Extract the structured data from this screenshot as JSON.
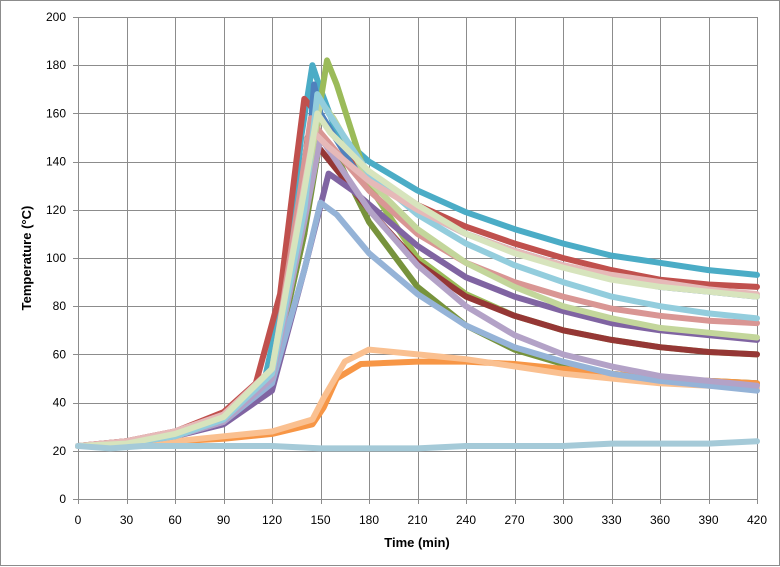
{
  "chart_data": {
    "type": "line",
    "xlabel": "Time (min)",
    "ylabel": "Temperature (°C)",
    "xlim": [
      0,
      420
    ],
    "ylim": [
      0,
      200
    ],
    "x_ticks": [
      0,
      30,
      60,
      90,
      120,
      150,
      180,
      210,
      240,
      270,
      300,
      330,
      360,
      390,
      420
    ],
    "y_ticks": [
      0,
      20,
      40,
      60,
      80,
      100,
      120,
      140,
      160,
      180,
      200
    ],
    "grid": true,
    "legend": "none",
    "series": [
      {
        "color": "#4BACC6",
        "points": [
          [
            0,
            22
          ],
          [
            30,
            23
          ],
          [
            60,
            26
          ],
          [
            90,
            32
          ],
          [
            115,
            48
          ],
          [
            130,
            95
          ],
          [
            138,
            150
          ],
          [
            145,
            180
          ],
          [
            150,
            170
          ],
          [
            160,
            152
          ],
          [
            180,
            140
          ],
          [
            210,
            128
          ],
          [
            240,
            119
          ],
          [
            270,
            112
          ],
          [
            300,
            106
          ],
          [
            330,
            101
          ],
          [
            360,
            98
          ],
          [
            390,
            95
          ],
          [
            420,
            93
          ]
        ]
      },
      {
        "color": "#9BBB59",
        "points": [
          [
            0,
            22
          ],
          [
            30,
            23
          ],
          [
            60,
            26
          ],
          [
            90,
            33
          ],
          [
            120,
            50
          ],
          [
            140,
            110
          ],
          [
            150,
            165
          ],
          [
            154,
            182
          ],
          [
            160,
            172
          ],
          [
            180,
            130
          ],
          [
            210,
            100
          ],
          [
            240,
            85
          ],
          [
            270,
            76
          ],
          [
            300,
            70
          ],
          [
            330,
            66
          ],
          [
            360,
            63
          ],
          [
            390,
            61
          ],
          [
            420,
            60
          ]
        ]
      },
      {
        "color": "#C0504D",
        "points": [
          [
            0,
            22
          ],
          [
            30,
            24
          ],
          [
            60,
            28
          ],
          [
            90,
            36
          ],
          [
            110,
            48
          ],
          [
            125,
            85
          ],
          [
            135,
            140
          ],
          [
            140,
            166
          ],
          [
            148,
            160
          ],
          [
            170,
            140
          ],
          [
            210,
            122
          ],
          [
            240,
            113
          ],
          [
            270,
            106
          ],
          [
            300,
            100
          ],
          [
            330,
            95
          ],
          [
            360,
            91
          ],
          [
            390,
            89
          ],
          [
            420,
            88
          ]
        ]
      },
      {
        "color": "#4F81BD",
        "points": [
          [
            0,
            22
          ],
          [
            30,
            23
          ],
          [
            60,
            27
          ],
          [
            90,
            33
          ],
          [
            120,
            52
          ],
          [
            140,
            120
          ],
          [
            146,
            172
          ],
          [
            150,
            160
          ],
          [
            170,
            138
          ],
          [
            210,
            120
          ],
          [
            240,
            110
          ],
          [
            270,
            103
          ],
          [
            300,
            97
          ],
          [
            330,
            92
          ],
          [
            360,
            88
          ],
          [
            390,
            86
          ],
          [
            420,
            84
          ]
        ]
      },
      {
        "color": "#77933C",
        "points": [
          [
            0,
            22
          ],
          [
            30,
            23
          ],
          [
            60,
            26
          ],
          [
            90,
            32
          ],
          [
            120,
            50
          ],
          [
            140,
            110
          ],
          [
            150,
            150
          ],
          [
            160,
            142
          ],
          [
            180,
            115
          ],
          [
            210,
            88
          ],
          [
            240,
            72
          ],
          [
            270,
            62
          ],
          [
            300,
            56
          ],
          [
            330,
            52
          ],
          [
            360,
            50
          ],
          [
            390,
            49
          ],
          [
            420,
            48
          ]
        ]
      },
      {
        "color": "#953735",
        "points": [
          [
            0,
            22
          ],
          [
            30,
            24
          ],
          [
            60,
            27
          ],
          [
            90,
            34
          ],
          [
            120,
            52
          ],
          [
            135,
            105
          ],
          [
            142,
            150
          ],
          [
            150,
            145
          ],
          [
            180,
            120
          ],
          [
            210,
            98
          ],
          [
            240,
            84
          ],
          [
            270,
            76
          ],
          [
            300,
            70
          ],
          [
            330,
            66
          ],
          [
            360,
            63
          ],
          [
            390,
            61
          ],
          [
            420,
            60
          ]
        ]
      },
      {
        "color": "#8064A2",
        "points": [
          [
            0,
            22
          ],
          [
            30,
            23
          ],
          [
            60,
            26
          ],
          [
            90,
            31
          ],
          [
            120,
            45
          ],
          [
            140,
            95
          ],
          [
            155,
            135
          ],
          [
            170,
            128
          ],
          [
            210,
            105
          ],
          [
            240,
            92
          ],
          [
            270,
            84
          ],
          [
            300,
            78
          ],
          [
            330,
            73
          ],
          [
            360,
            70
          ],
          [
            390,
            68
          ],
          [
            420,
            66
          ]
        ]
      },
      {
        "color": "#F79646",
        "points": [
          [
            0,
            22
          ],
          [
            30,
            23
          ],
          [
            60,
            24
          ],
          [
            90,
            25
          ],
          [
            120,
            27
          ],
          [
            145,
            31
          ],
          [
            152,
            38
          ],
          [
            160,
            50
          ],
          [
            175,
            56
          ],
          [
            210,
            57
          ],
          [
            240,
            57
          ],
          [
            270,
            56
          ],
          [
            300,
            54
          ],
          [
            330,
            52
          ],
          [
            360,
            50
          ],
          [
            390,
            49
          ],
          [
            420,
            48
          ]
        ]
      },
      {
        "color": "#FAC090",
        "points": [
          [
            0,
            22
          ],
          [
            30,
            23
          ],
          [
            60,
            24
          ],
          [
            90,
            26
          ],
          [
            120,
            28
          ],
          [
            145,
            33
          ],
          [
            152,
            42
          ],
          [
            165,
            57
          ],
          [
            180,
            62
          ],
          [
            210,
            60
          ],
          [
            240,
            58
          ],
          [
            270,
            55
          ],
          [
            300,
            52
          ],
          [
            330,
            50
          ],
          [
            360,
            48
          ],
          [
            390,
            47
          ],
          [
            420,
            46
          ]
        ]
      },
      {
        "color": "#95B3D7",
        "points": [
          [
            0,
            22
          ],
          [
            30,
            23
          ],
          [
            60,
            26
          ],
          [
            90,
            32
          ],
          [
            120,
            48
          ],
          [
            140,
            95
          ],
          [
            150,
            123
          ],
          [
            160,
            118
          ],
          [
            180,
            102
          ],
          [
            210,
            85
          ],
          [
            240,
            72
          ],
          [
            270,
            63
          ],
          [
            300,
            57
          ],
          [
            330,
            52
          ],
          [
            360,
            49
          ],
          [
            390,
            47
          ],
          [
            420,
            45
          ]
        ]
      },
      {
        "color": "#B3A2C7",
        "points": [
          [
            0,
            22
          ],
          [
            30,
            23
          ],
          [
            60,
            26
          ],
          [
            90,
            32
          ],
          [
            120,
            50
          ],
          [
            140,
            115
          ],
          [
            150,
            150
          ],
          [
            160,
            140
          ],
          [
            180,
            120
          ],
          [
            210,
            97
          ],
          [
            240,
            80
          ],
          [
            270,
            68
          ],
          [
            300,
            60
          ],
          [
            330,
            55
          ],
          [
            360,
            51
          ],
          [
            390,
            49
          ],
          [
            420,
            47
          ]
        ]
      },
      {
        "color": "#D99694",
        "points": [
          [
            0,
            22
          ],
          [
            30,
            24
          ],
          [
            60,
            28
          ],
          [
            90,
            35
          ],
          [
            120,
            52
          ],
          [
            138,
            130
          ],
          [
            144,
            158
          ],
          [
            150,
            152
          ],
          [
            180,
            128
          ],
          [
            210,
            110
          ],
          [
            240,
            98
          ],
          [
            270,
            90
          ],
          [
            300,
            84
          ],
          [
            330,
            79
          ],
          [
            360,
            76
          ],
          [
            390,
            74
          ],
          [
            420,
            73
          ]
        ]
      },
      {
        "color": "#C3D69B",
        "points": [
          [
            0,
            22
          ],
          [
            30,
            23
          ],
          [
            60,
            27
          ],
          [
            90,
            34
          ],
          [
            120,
            53
          ],
          [
            140,
            125
          ],
          [
            150,
            165
          ],
          [
            158,
            158
          ],
          [
            180,
            132
          ],
          [
            210,
            112
          ],
          [
            240,
            98
          ],
          [
            270,
            88
          ],
          [
            300,
            80
          ],
          [
            330,
            75
          ],
          [
            360,
            71
          ],
          [
            390,
            69
          ],
          [
            420,
            67
          ]
        ]
      },
      {
        "color": "#93CDDD",
        "points": [
          [
            0,
            22
          ],
          [
            30,
            23
          ],
          [
            60,
            26
          ],
          [
            90,
            33
          ],
          [
            120,
            52
          ],
          [
            140,
            120
          ],
          [
            148,
            168
          ],
          [
            155,
            160
          ],
          [
            180,
            135
          ],
          [
            210,
            118
          ],
          [
            240,
            106
          ],
          [
            270,
            97
          ],
          [
            300,
            90
          ],
          [
            330,
            84
          ],
          [
            360,
            80
          ],
          [
            390,
            77
          ],
          [
            420,
            75
          ]
        ]
      },
      {
        "color": "#E6B9B8",
        "points": [
          [
            0,
            22
          ],
          [
            30,
            24
          ],
          [
            60,
            28
          ],
          [
            90,
            35
          ],
          [
            120,
            54
          ],
          [
            140,
            130
          ],
          [
            146,
            152
          ],
          [
            155,
            146
          ],
          [
            180,
            132
          ],
          [
            210,
            120
          ],
          [
            240,
            110
          ],
          [
            270,
            103
          ],
          [
            300,
            97
          ],
          [
            330,
            93
          ],
          [
            360,
            90
          ],
          [
            390,
            87
          ],
          [
            420,
            85
          ]
        ]
      },
      {
        "color": "#D7E4BD",
        "points": [
          [
            0,
            22
          ],
          [
            30,
            23
          ],
          [
            60,
            27
          ],
          [
            90,
            34
          ],
          [
            120,
            54
          ],
          [
            140,
            128
          ],
          [
            148,
            160
          ],
          [
            156,
            152
          ],
          [
            180,
            136
          ],
          [
            210,
            122
          ],
          [
            240,
            110
          ],
          [
            270,
            102
          ],
          [
            300,
            96
          ],
          [
            330,
            91
          ],
          [
            360,
            88
          ],
          [
            390,
            86
          ],
          [
            420,
            84
          ]
        ]
      },
      {
        "color": "#A5CAD8",
        "points": [
          [
            0,
            22
          ],
          [
            20,
            21
          ],
          [
            40,
            22
          ],
          [
            60,
            22
          ],
          [
            90,
            22
          ],
          [
            120,
            22
          ],
          [
            150,
            21
          ],
          [
            180,
            21
          ],
          [
            210,
            21
          ],
          [
            240,
            22
          ],
          [
            270,
            22
          ],
          [
            300,
            22
          ],
          [
            330,
            23
          ],
          [
            360,
            23
          ],
          [
            390,
            23
          ],
          [
            420,
            24
          ]
        ]
      }
    ]
  }
}
